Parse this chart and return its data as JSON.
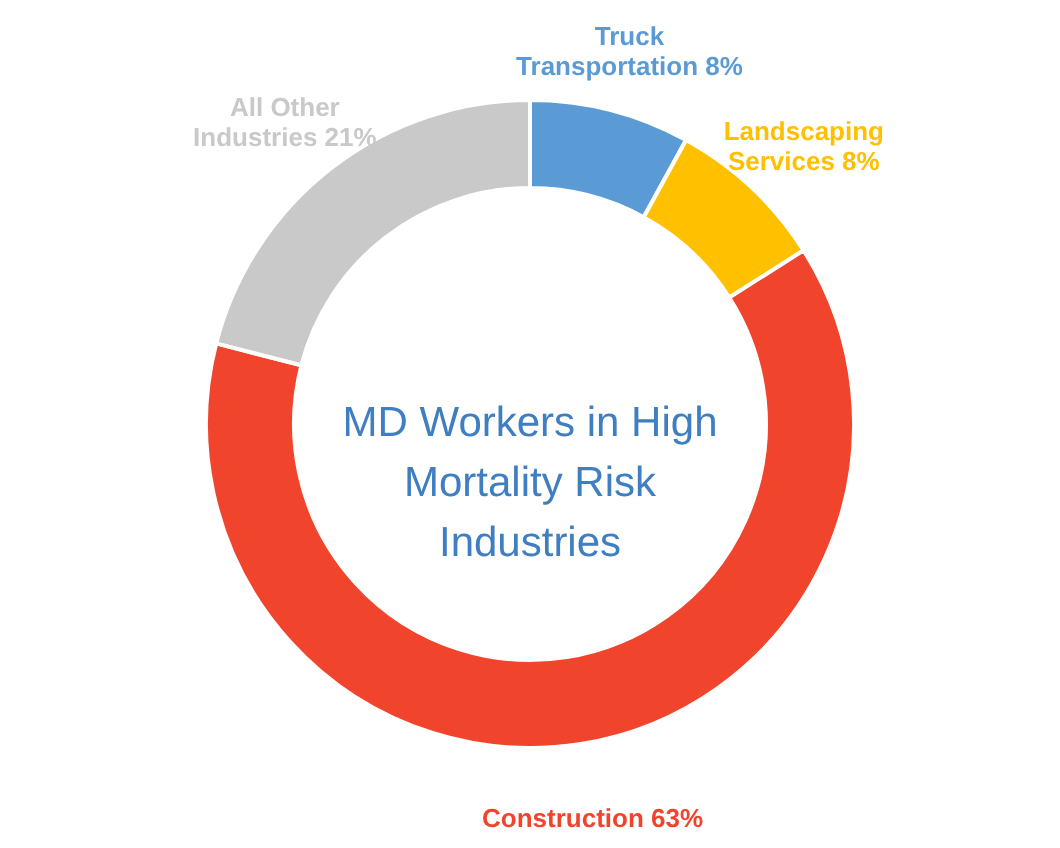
{
  "chart_data": {
    "type": "donut",
    "title": "MD Workers in High Mortality Risk Industries",
    "categories": [
      "Truck Transportation 8%",
      "Landscaping Services 8%",
      "Construction 63%",
      "All Other Industries 21%"
    ],
    "values": [
      8,
      8,
      63,
      21
    ],
    "colors": [
      "#5b9bd5",
      "#ffc000",
      "#f0442c",
      "#c9c9c9"
    ],
    "legend": false
  }
}
